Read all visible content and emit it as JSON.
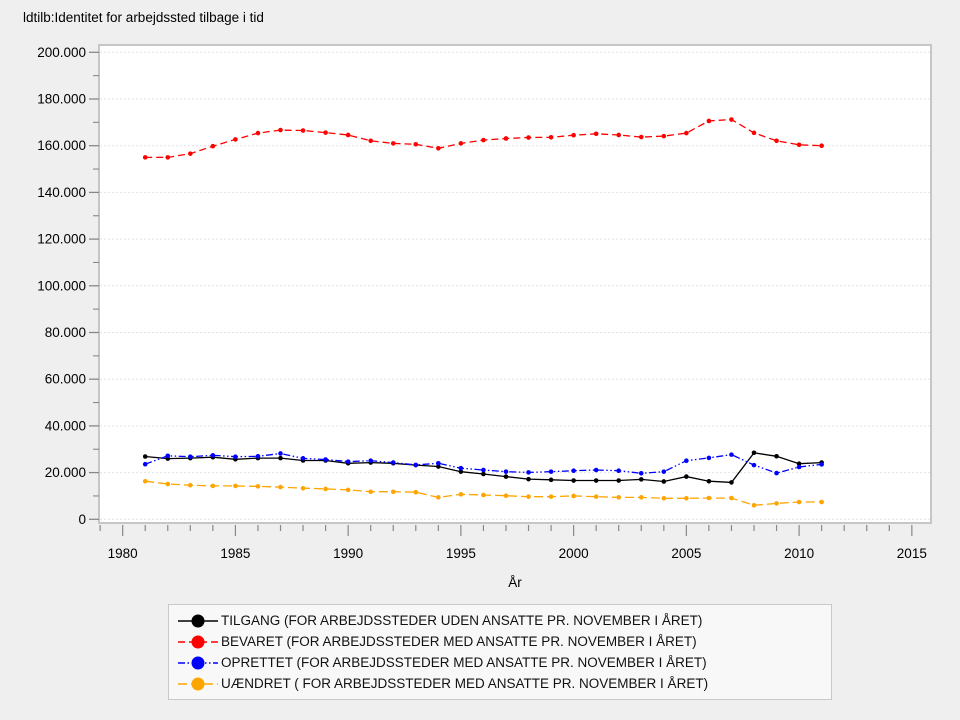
{
  "title": "ldtilb:Identitet for arbejdssted tilbage i tid",
  "chart_data": {
    "type": "line",
    "title": "ldtilb:Identitet for arbejdssted tilbage i tid",
    "xlabel": "År",
    "ylabel": "",
    "x": [
      1981,
      1982,
      1983,
      1984,
      1985,
      1986,
      1987,
      1988,
      1989,
      1990,
      1991,
      1992,
      1993,
      1994,
      1995,
      1996,
      1997,
      1998,
      1999,
      2000,
      2001,
      2002,
      2003,
      2004,
      2005,
      2006,
      2007,
      2008,
      2009,
      2010,
      2011
    ],
    "series": [
      {
        "name": "TILGANG (FOR ARBEJDSSTEDER UDEN ANSATTE PR. NOVEMBER I ÅRET)",
        "color": "#000000",
        "line_style": "solid",
        "marker": "circle",
        "values": [
          26900,
          26000,
          26200,
          26600,
          25700,
          26200,
          26200,
          25200,
          25200,
          24000,
          24300,
          24000,
          23200,
          22600,
          20400,
          19400,
          18300,
          17200,
          16900,
          16600,
          16600,
          16600,
          17100,
          16200,
          18300,
          16300,
          15800,
          28500,
          27000,
          23800,
          24300
        ]
      },
      {
        "name": "BEVARET (FOR ARBEJDSSTEDER MED ANSATTE PR. NOVEMBER I ÅRET)",
        "color": "#ff0000",
        "line_style": "dashed",
        "marker": "circle",
        "values": [
          155000,
          155000,
          156600,
          159800,
          162700,
          165400,
          166700,
          166500,
          165600,
          164600,
          162100,
          161000,
          160600,
          158900,
          161000,
          162400,
          163100,
          163500,
          163600,
          164500,
          165100,
          164600,
          163700,
          164100,
          165400,
          170600,
          171200,
          165500,
          162100,
          160400,
          160000
        ]
      },
      {
        "name": "OPRETTET (FOR ARBEJDSSTEDER MED ANSATTE PR. NOVEMBER I ÅRET)",
        "color": "#0000ff",
        "line_style": "dashdotdot",
        "marker": "circle",
        "values": [
          23600,
          27200,
          26800,
          27400,
          26800,
          27000,
          28200,
          26100,
          25600,
          24700,
          25100,
          24300,
          23300,
          24000,
          21900,
          21100,
          20400,
          20100,
          20400,
          20800,
          21100,
          20800,
          19700,
          20400,
          25100,
          26300,
          27700,
          23200,
          19800,
          22400,
          23500
        ]
      },
      {
        "name": "UÆNDRET ( FOR ARBEJDSSTEDER MED ANSATTE PR. NOVEMBER I ÅRET)",
        "color": "#ffa500",
        "line_style": "longdash",
        "marker": "circle",
        "values": [
          16300,
          15100,
          14600,
          14300,
          14300,
          14100,
          13800,
          13300,
          13000,
          12600,
          11800,
          11800,
          11600,
          9400,
          10700,
          10400,
          10100,
          9700,
          9700,
          10000,
          9700,
          9400,
          9400,
          9000,
          9000,
          9100,
          9100,
          6000,
          6800,
          7400,
          7400
        ]
      }
    ],
    "x_ticks": [
      1980,
      1985,
      1990,
      1995,
      2000,
      2005,
      2010,
      2015
    ],
    "x_tick_labels": [
      "1980",
      "1985",
      "1990",
      "1995",
      "2000",
      "2005",
      "2010",
      "2015"
    ],
    "x_minor_tick_step": 1,
    "x_range": [
      1978.95,
      2015.85
    ],
    "y_ticks": [
      0,
      20000,
      40000,
      60000,
      80000,
      100000,
      120000,
      140000,
      160000,
      180000,
      200000
    ],
    "y_tick_labels": [
      "0",
      "20.000",
      "40.000",
      "60.000",
      "80.000",
      "100.000",
      "120.000",
      "140.000",
      "160.000",
      "180.000",
      "200.000"
    ],
    "y_minor_tick_step": 10000,
    "ylim": [
      0,
      203000
    ],
    "grid": "horizontal-major",
    "legend_position": "bottom"
  },
  "legend": {
    "entries": [
      "TILGANG (FOR ARBEJDSSTEDER UDEN ANSATTE PR. NOVEMBER I ÅRET)",
      "BEVARET (FOR ARBEJDSSTEDER MED ANSATTE PR. NOVEMBER I ÅRET)",
      "OPRETTET (FOR ARBEJDSSTEDER MED ANSATTE PR. NOVEMBER I ÅRET)",
      "UÆNDRET ( FOR ARBEJDSSTEDER MED ANSATTE PR. NOVEMBER I ÅRET)"
    ]
  },
  "colors": {
    "page_background": "#efefef",
    "plot_background": "#ffffff",
    "frame_border": "#c6c6c6",
    "gridline": "#e2e2e2",
    "tick": "#888888",
    "text": "#000000"
  }
}
